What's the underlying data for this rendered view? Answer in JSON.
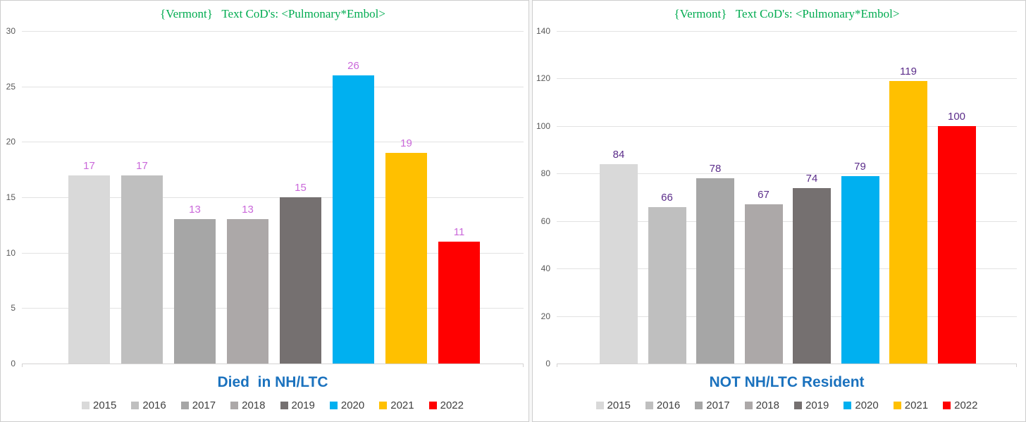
{
  "chart_data": [
    {
      "type": "bar",
      "title": "{Vermont}   Text CoD's: <Pulmonary*Embol>",
      "title_color": "#00AB50",
      "xlabel": "Died  in NH/LTC",
      "xlabel_color": "#1B72BE",
      "categories": [
        "2015",
        "2016",
        "2017",
        "2018",
        "2019",
        "2020",
        "2021",
        "2022"
      ],
      "values": [
        17,
        17,
        13,
        13,
        15,
        26,
        19,
        11
      ],
      "bar_colors": [
        "#D9D9D9",
        "#BFBFBF",
        "#A6A6A6",
        "#ACA8A8",
        "#757070",
        "#00B0F0",
        "#FFC000",
        "#FF0000"
      ],
      "data_label_color": "#CA68DA",
      "ylim": [
        0,
        30
      ],
      "ytick_step": 5,
      "ytick_labels": [
        "0",
        "5",
        "10",
        "15",
        "20",
        "25",
        "30"
      ],
      "grid": "horizontal",
      "legend_position": "bottom",
      "legend_entries": [
        "2015",
        "2016",
        "2017",
        "2018",
        "2019",
        "2020",
        "2021",
        "2022"
      ]
    },
    {
      "type": "bar",
      "title": "{Vermont}   Text CoD's: <Pulmonary*Embol>",
      "title_color": "#00AB50",
      "xlabel": "NOT NH/LTC Resident",
      "xlabel_color": "#1B72BE",
      "categories": [
        "2015",
        "2016",
        "2017",
        "2018",
        "2019",
        "2020",
        "2021",
        "2022"
      ],
      "values": [
        84,
        66,
        78,
        67,
        74,
        79,
        119,
        100
      ],
      "bar_colors": [
        "#D9D9D9",
        "#BFBFBF",
        "#A6A6A6",
        "#ACA8A8",
        "#757070",
        "#00B0F0",
        "#FFC000",
        "#FF0000"
      ],
      "data_label_color": "#5B2D8A",
      "ylim": [
        0,
        140
      ],
      "ytick_step": 20,
      "ytick_labels": [
        "0",
        "20",
        "40",
        "60",
        "80",
        "100",
        "120",
        "140"
      ],
      "grid": "horizontal",
      "legend_position": "bottom",
      "legend_entries": [
        "2015",
        "2016",
        "2017",
        "2018",
        "2019",
        "2020",
        "2021",
        "2022"
      ]
    }
  ]
}
